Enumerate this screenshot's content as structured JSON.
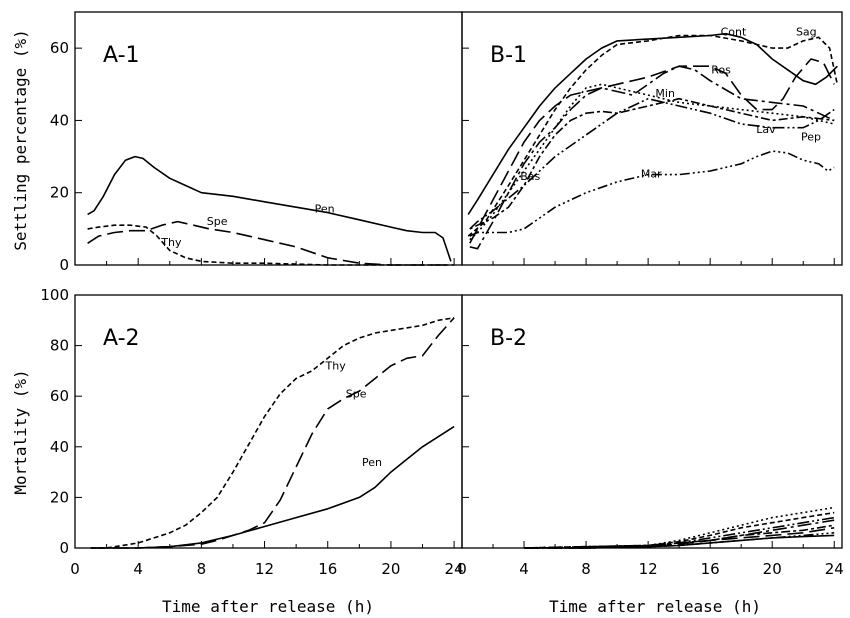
{
  "figure": {
    "ylabel_top": "Settling percentage (%)",
    "ylabel_bottom": "Mortality (%)",
    "xlabel": "Time after release (h)"
  },
  "chart_data": [
    {
      "id": "A1",
      "type": "line",
      "panel_label": "A-1",
      "xlim": [
        0,
        24.5
      ],
      "ylim": [
        0,
        70
      ],
      "yticks": [
        0,
        20,
        40,
        60
      ],
      "xticks": [
        0,
        4,
        8,
        12,
        16,
        20,
        24
      ],
      "series": [
        {
          "name": "Pen",
          "dash": "solid",
          "label_at": [
            15.8,
            14.5
          ],
          "x": [
            0.8,
            1.2,
            1.8,
            2.5,
            3.2,
            3.8,
            4.3,
            5,
            6,
            7,
            8,
            10,
            12,
            14,
            16,
            18,
            20,
            21,
            22,
            22.8,
            23.3,
            23.8
          ],
          "y": [
            14,
            15,
            19,
            25,
            29,
            30,
            29.5,
            27,
            24,
            22,
            20,
            19,
            17.5,
            16,
            14.5,
            12.5,
            10.5,
            9.5,
            9,
            9,
            7.5,
            1
          ]
        },
        {
          "name": "Spe",
          "dash": "long",
          "label_at": [
            9,
            11
          ],
          "x": [
            0.8,
            1.5,
            2.5,
            3.5,
            4.5,
            5.5,
            6.5,
            7.5,
            8.5,
            10,
            12,
            14,
            16,
            18,
            20,
            22,
            23.5
          ],
          "y": [
            6,
            8,
            9,
            9.5,
            9.5,
            11,
            12,
            11,
            10,
            9,
            7,
            5,
            2,
            0.5,
            0,
            0,
            0
          ]
        },
        {
          "name": "Thy",
          "dash": "short",
          "label_at": [
            6.1,
            5.3
          ],
          "x": [
            0.8,
            1.5,
            2.5,
            3.5,
            4.5,
            5.2,
            6,
            7,
            8,
            10,
            12,
            16,
            20,
            24
          ],
          "y": [
            10,
            10.5,
            11,
            11,
            10.5,
            8,
            4,
            2,
            1,
            0.5,
            0.5,
            0,
            0,
            0
          ]
        }
      ]
    },
    {
      "id": "B1",
      "type": "line",
      "panel_label": "B-1",
      "xlim": [
        0,
        24.5
      ],
      "ylim": [
        0,
        70
      ],
      "yticks": [
        0,
        20,
        40,
        60
      ],
      "xticks": [
        0,
        4,
        8,
        12,
        16,
        20,
        24
      ],
      "series": [
        {
          "name": "Cont",
          "dash": "solid",
          "label_at": [
            17.5,
            63.5
          ],
          "x": [
            0.4,
            1,
            2,
            3,
            4,
            5,
            6,
            7,
            8,
            9,
            10,
            12,
            14,
            16,
            17,
            18,
            19,
            20,
            21,
            22,
            22.8,
            23.5,
            24.2
          ],
          "y": [
            14,
            18,
            25,
            32,
            38,
            44,
            49,
            53,
            57,
            60,
            62,
            62.5,
            63,
            63.5,
            64,
            63,
            61,
            57,
            54,
            51,
            50,
            52,
            55
          ]
        },
        {
          "name": "Sag",
          "dash": "short",
          "label_at": [
            22.2,
            63.5
          ],
          "x": [
            0.4,
            1.5,
            3,
            5,
            6,
            7,
            8,
            9,
            10,
            12,
            14,
            16,
            18,
            20,
            21,
            22,
            23,
            23.7,
            24.2
          ],
          "y": [
            8,
            12,
            22,
            36,
            43,
            49,
            54,
            58,
            61,
            62,
            63.5,
            63.5,
            62,
            60,
            60,
            62,
            63,
            60,
            50
          ]
        },
        {
          "name": "Ros",
          "dash": "long",
          "label_at": [
            16.7,
            53
          ],
          "x": [
            0.5,
            1,
            2,
            3,
            4,
            5,
            6,
            7,
            8,
            10,
            12,
            14,
            16,
            17,
            18,
            19,
            20,
            20.7,
            21.5,
            22.5,
            23.3,
            24
          ],
          "y": [
            6,
            10,
            18,
            26,
            34,
            40,
            44,
            47,
            48,
            50,
            52,
            55,
            55,
            53,
            47,
            43,
            43,
            46,
            52,
            57,
            56,
            50
          ]
        },
        {
          "name": "Min",
          "dash": "dashdot",
          "label_at": [
            13.1,
            46.5
          ],
          "x": [
            0.5,
            1,
            2,
            3,
            4,
            5,
            6,
            7,
            8,
            9,
            10,
            11,
            12,
            13,
            14,
            15,
            16,
            18,
            20,
            22,
            23,
            24
          ],
          "y": [
            5,
            4.5,
            12,
            20,
            28,
            34,
            38,
            43,
            47,
            49,
            48,
            47,
            50,
            53,
            55,
            54,
            51,
            46,
            45,
            44,
            42,
            40
          ]
        },
        {
          "name": "Lav",
          "dash": "dashdotdot",
          "label_at": [
            19.6,
            36.5
          ],
          "x": [
            0.5,
            1,
            2,
            4,
            6,
            8,
            10,
            12,
            14,
            16,
            18,
            20,
            22,
            23,
            24
          ],
          "y": [
            10,
            12,
            15,
            22,
            30,
            36,
            42,
            46,
            44,
            42,
            39,
            38,
            38,
            40,
            43
          ]
        },
        {
          "name": "Pep",
          "dash": "dot",
          "label_at": [
            22.5,
            34.5
          ],
          "x": [
            0.5,
            1,
            2,
            3,
            4,
            5,
            6,
            7,
            8,
            9,
            10,
            12,
            14,
            16,
            18,
            20,
            22,
            24
          ],
          "y": [
            7,
            9,
            14,
            20,
            26,
            32,
            38,
            44,
            49,
            50,
            49,
            47,
            45,
            44,
            43,
            42,
            41,
            39
          ]
        },
        {
          "name": "Bas",
          "dash": "dotdash",
          "label_at": [
            4.4,
            23.5
          ],
          "x": [
            0.5,
            1,
            2,
            3,
            4,
            5,
            6,
            7,
            8,
            9,
            10,
            12,
            14,
            16,
            18,
            20,
            22,
            24
          ],
          "y": [
            10,
            11,
            13,
            16,
            22,
            30,
            36,
            40,
            42,
            42.5,
            42,
            44,
            46,
            44,
            42,
            40,
            41,
            40
          ]
        },
        {
          "name": "Mar",
          "dash": "dashdotdotdot",
          "label_at": [
            12.2,
            24.2
          ],
          "x": [
            0.5,
            1,
            2,
            3,
            4,
            5,
            6,
            7,
            8,
            10,
            12,
            14,
            16,
            18,
            19,
            20,
            21,
            22,
            23,
            23.6,
            24
          ],
          "y": [
            8,
            9,
            9,
            9,
            10,
            13,
            16,
            18,
            20,
            23,
            25,
            25,
            26,
            28,
            30,
            31.5,
            31,
            29,
            28,
            26,
            27
          ]
        }
      ]
    },
    {
      "id": "A2",
      "type": "line",
      "panel_label": "A-2",
      "xlim": [
        0,
        24.5
      ],
      "ylim": [
        0,
        100
      ],
      "yticks": [
        0,
        20,
        40,
        60,
        80,
        100
      ],
      "xticks": [
        0,
        4,
        8,
        12,
        16,
        20,
        24
      ],
      "series": [
        {
          "name": "Thy",
          "dash": "short",
          "label_at": [
            16.5,
            70.5
          ],
          "x": [
            1,
            2,
            3,
            4,
            5,
            6,
            7,
            8,
            9,
            10,
            11,
            12,
            13,
            14,
            15,
            16,
            17,
            18,
            19,
            20,
            21,
            22,
            23,
            24
          ],
          "y": [
            0,
            0,
            1,
            2,
            4,
            6,
            9,
            14,
            20,
            30,
            41,
            52,
            61,
            67,
            70,
            75,
            80,
            83,
            85,
            86,
            87,
            88,
            90,
            91
          ]
        },
        {
          "name": "Spe",
          "dash": "long",
          "label_at": [
            17.8,
            59.5
          ],
          "x": [
            1,
            4,
            6,
            8,
            9,
            10,
            11,
            12,
            13,
            14,
            15,
            16,
            17,
            18,
            19,
            20,
            21,
            22,
            23,
            24
          ],
          "y": [
            0,
            0,
            0.5,
            1.5,
            3,
            5,
            7,
            10,
            19,
            32,
            45,
            55,
            59,
            62,
            67,
            72,
            75,
            76,
            84,
            91
          ]
        },
        {
          "name": "Pen",
          "dash": "solid",
          "label_at": [
            18.8,
            32.5
          ],
          "x": [
            1,
            4,
            6,
            8,
            9,
            10,
            12,
            14,
            16,
            18,
            19,
            20,
            21,
            22,
            23,
            24
          ],
          "y": [
            0,
            0,
            0.5,
            2,
            3.5,
            5,
            8.5,
            12,
            15.5,
            20,
            24,
            30,
            35,
            40,
            44,
            48
          ]
        }
      ]
    },
    {
      "id": "B2",
      "type": "line",
      "panel_label": "B-2",
      "xlim": [
        0,
        24.5
      ],
      "ylim": [
        0,
        100
      ],
      "yticks": [
        0,
        20,
        40,
        60,
        80,
        100
      ],
      "xticks": [
        0,
        4,
        8,
        12,
        16,
        20,
        24
      ],
      "series": [
        {
          "name": "",
          "dash": "solid",
          "x": [
            4,
            8,
            12,
            14,
            16,
            18,
            20,
            22,
            24
          ],
          "y": [
            0,
            0,
            0.5,
            1,
            2,
            3,
            4,
            4.5,
            5
          ]
        },
        {
          "name": "",
          "dash": "dashdot",
          "x": [
            4,
            8,
            12,
            14,
            16,
            18,
            20,
            22,
            24
          ],
          "y": [
            0,
            0.5,
            1,
            2,
            3,
            5,
            7,
            9,
            11
          ]
        },
        {
          "name": "",
          "dash": "short",
          "x": [
            4,
            8,
            12,
            14,
            16,
            18,
            20,
            22,
            24
          ],
          "y": [
            0,
            0.5,
            1,
            2.5,
            5,
            8,
            10,
            12,
            14
          ]
        },
        {
          "name": "",
          "dash": "dot",
          "x": [
            4,
            8,
            12,
            14,
            16,
            18,
            20,
            22,
            24
          ],
          "y": [
            0,
            0.5,
            1,
            3,
            6,
            9,
            12,
            14,
            16
          ]
        },
        {
          "name": "",
          "dash": "long",
          "x": [
            4,
            8,
            12,
            14,
            16,
            18,
            20,
            22,
            24
          ],
          "y": [
            0,
            0,
            0.5,
            1.5,
            3,
            4,
            5,
            6,
            8
          ]
        },
        {
          "name": "",
          "dash": "dashdotdot",
          "x": [
            4,
            8,
            12,
            14,
            16,
            18,
            20,
            22,
            24
          ],
          "y": [
            0,
            0.5,
            1,
            2,
            4,
            6,
            8,
            10,
            12
          ]
        },
        {
          "name": "",
          "dash": "dotdash",
          "x": [
            4,
            8,
            12,
            14,
            16,
            18,
            20,
            22,
            24
          ],
          "y": [
            0,
            0,
            1,
            2,
            3,
            5,
            6,
            7,
            9
          ]
        },
        {
          "name": "",
          "dash": "dashdotdotdot",
          "x": [
            4,
            8,
            12,
            14,
            16,
            18,
            20,
            22,
            24
          ],
          "y": [
            0,
            0,
            0.5,
            1,
            2,
            3,
            4,
            5,
            6
          ]
        }
      ]
    }
  ]
}
